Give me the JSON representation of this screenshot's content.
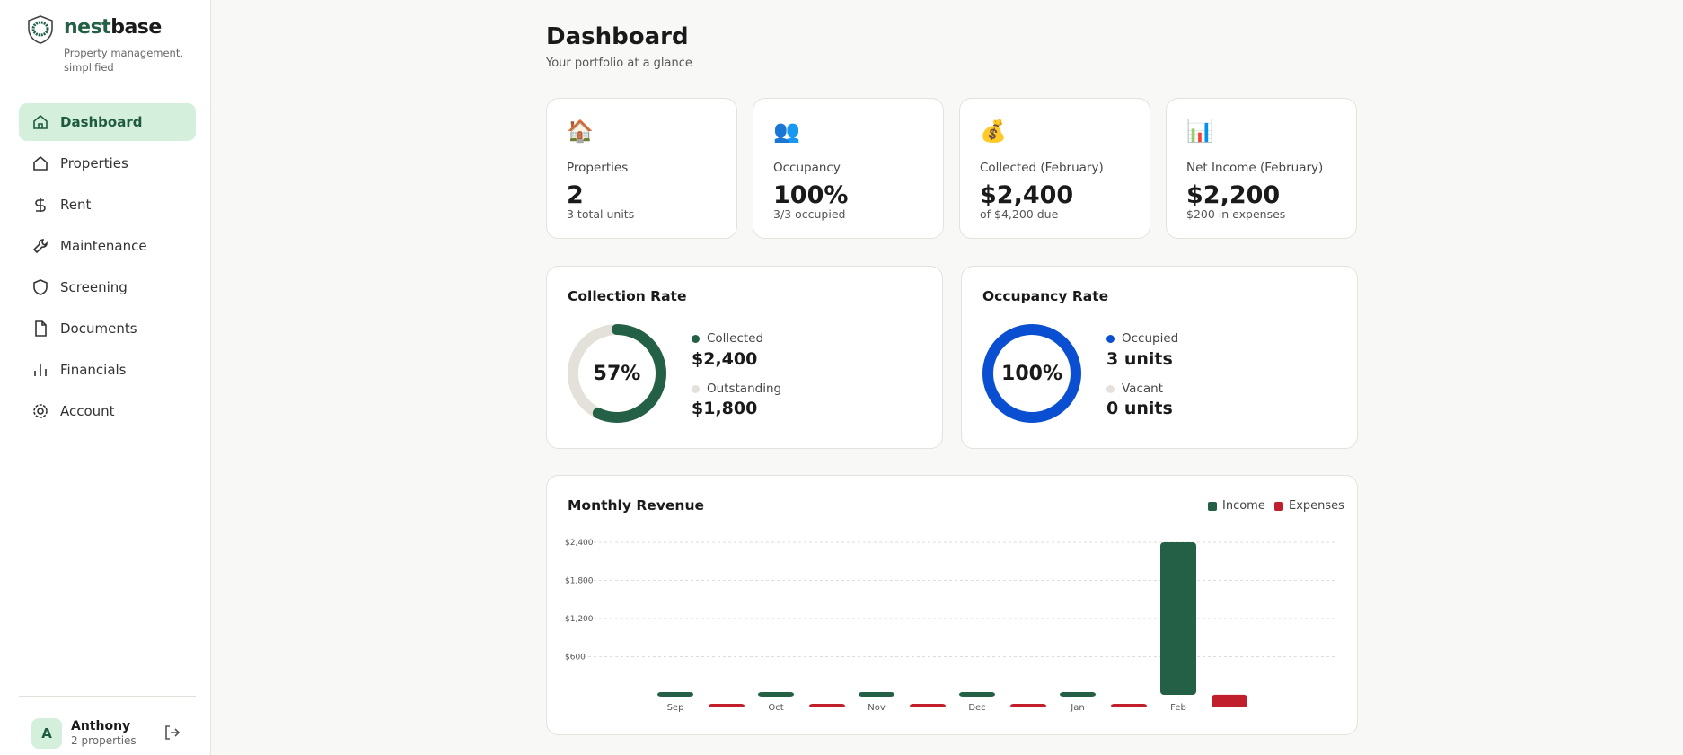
{
  "sidebar": {
    "brand_a": "nest",
    "brand_b": "base",
    "tagline": "Property management, simplified",
    "items": [
      {
        "label": "Dashboard",
        "icon": "home-icon",
        "active": true
      },
      {
        "label": "Properties",
        "icon": "building-icon"
      },
      {
        "label": "Rent",
        "icon": "dollar-icon"
      },
      {
        "label": "Maintenance",
        "icon": "wrench-icon"
      },
      {
        "label": "Screening",
        "icon": "shield-icon"
      },
      {
        "label": "Documents",
        "icon": "document-icon"
      },
      {
        "label": "Financials",
        "icon": "bar-chart-icon"
      },
      {
        "label": "Account",
        "icon": "gear-icon"
      }
    ],
    "user": {
      "initial": "A",
      "name": "Anthony",
      "sub": "2 properties"
    }
  },
  "header": {
    "title": "Dashboard",
    "subtitle": "Your portfolio at a glance"
  },
  "stats": [
    {
      "icon": "🏠",
      "label": "Properties",
      "value": "2",
      "note": "3 total units"
    },
    {
      "icon": "👥",
      "label": "Occupancy",
      "value": "100%",
      "note": "3/3 occupied"
    },
    {
      "icon": "💰",
      "label": "Collected (February)",
      "value": "$2,400",
      "note": "of $4,200 due"
    },
    {
      "icon": "📊",
      "label": "Net Income (February)",
      "value": "$2,200",
      "note": "$200 in expenses"
    }
  ],
  "collection": {
    "title": "Collection Rate",
    "percent": "57%",
    "fraction": 0.57,
    "a_label": "Collected",
    "a_value": "$2,400",
    "b_label": "Outstanding",
    "b_value": "$1,800"
  },
  "occupancy": {
    "title": "Occupancy Rate",
    "percent": "100%",
    "fraction": 1,
    "a_label": "Occupied",
    "a_value": "3 units",
    "b_label": "Vacant",
    "b_value": "0 units"
  },
  "colors": {
    "primary": "#236046",
    "income": "#236046",
    "expenses": "#c11f2b",
    "occupancy": "#0a4fd1",
    "track": "#e4e1da",
    "active_bg": "#d4f0dc"
  },
  "chart_data": {
    "type": "bar",
    "title": "Monthly Revenue",
    "categories": [
      "Sep",
      "Oct",
      "Nov",
      "Dec",
      "Jan",
      "Feb"
    ],
    "series": [
      {
        "name": "Income",
        "values": [
          0,
          0,
          0,
          0,
          0,
          2400
        ]
      },
      {
        "name": "Expenses",
        "values": [
          0,
          0,
          0,
          0,
          0,
          200
        ]
      }
    ],
    "yticks": [
      600,
      1200,
      1800,
      2400
    ],
    "ytick_labels": [
      "$600",
      "$1,200",
      "$1,800",
      "$2,400"
    ],
    "grid": true,
    "legend": "top-right"
  }
}
